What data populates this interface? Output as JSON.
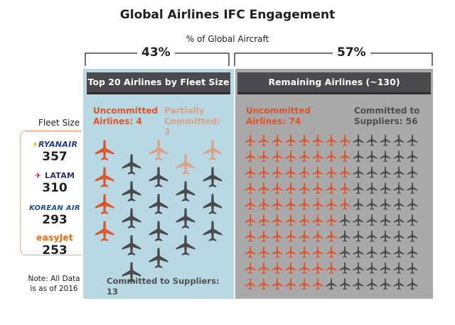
{
  "title": "Global Airlines IFC Engagement",
  "axis_caption": "% of Global Aircraft",
  "colors": {
    "uncommitted": "#e0542b",
    "partial": "#d9a38a",
    "committed": "#4a4a4c",
    "left_bg": "#b8d9e3",
    "right_bg": "#a9a9a9"
  },
  "left": {
    "percent": "43%",
    "header": "Top 20 Airlines by Fleet Size",
    "uncommitted_label": "Uncommitted Airlines: 4",
    "partial_label": "Partially Committed: 3",
    "committed_label": "Committed to Suppliers: 13"
  },
  "right": {
    "percent": "57%",
    "header": "Remaining Airlines (~130)",
    "uncommitted_label": "Uncommitted Airlines: 74",
    "committed_label": "Committed to Suppliers: 56"
  },
  "fleet": {
    "title": "Fleet Size",
    "airlines": [
      {
        "name": "RYANAIR",
        "size": "357",
        "color": "#1d3c8f"
      },
      {
        "name": "LATAM",
        "size": "310",
        "color": "#2a2f7a"
      },
      {
        "name": "KOREAN AIR",
        "size": "293",
        "color": "#1d4fa0"
      },
      {
        "name": "easyJet",
        "size": "253",
        "color": "#ff6600"
      }
    ]
  },
  "note": "Note: All Data is as of 2016",
  "chart_data": {
    "type": "pictogram",
    "title": "Global Airlines IFC Engagement",
    "groups": [
      {
        "name": "Top 20 Airlines by Fleet Size",
        "share_of_global_aircraft_pct": 43,
        "categories": [
          "Uncommitted",
          "Partially Committed",
          "Committed to Suppliers"
        ],
        "values": [
          4,
          3,
          13
        ]
      },
      {
        "name": "Remaining Airlines (~130)",
        "share_of_global_aircraft_pct": 57,
        "categories": [
          "Uncommitted",
          "Committed to Suppliers"
        ],
        "values": [
          74,
          56
        ]
      }
    ],
    "fleet_size": {
      "categories": [
        "Ryanair",
        "LATAM",
        "Korean Air",
        "easyJet"
      ],
      "values": [
        357,
        310,
        293,
        253
      ]
    }
  }
}
